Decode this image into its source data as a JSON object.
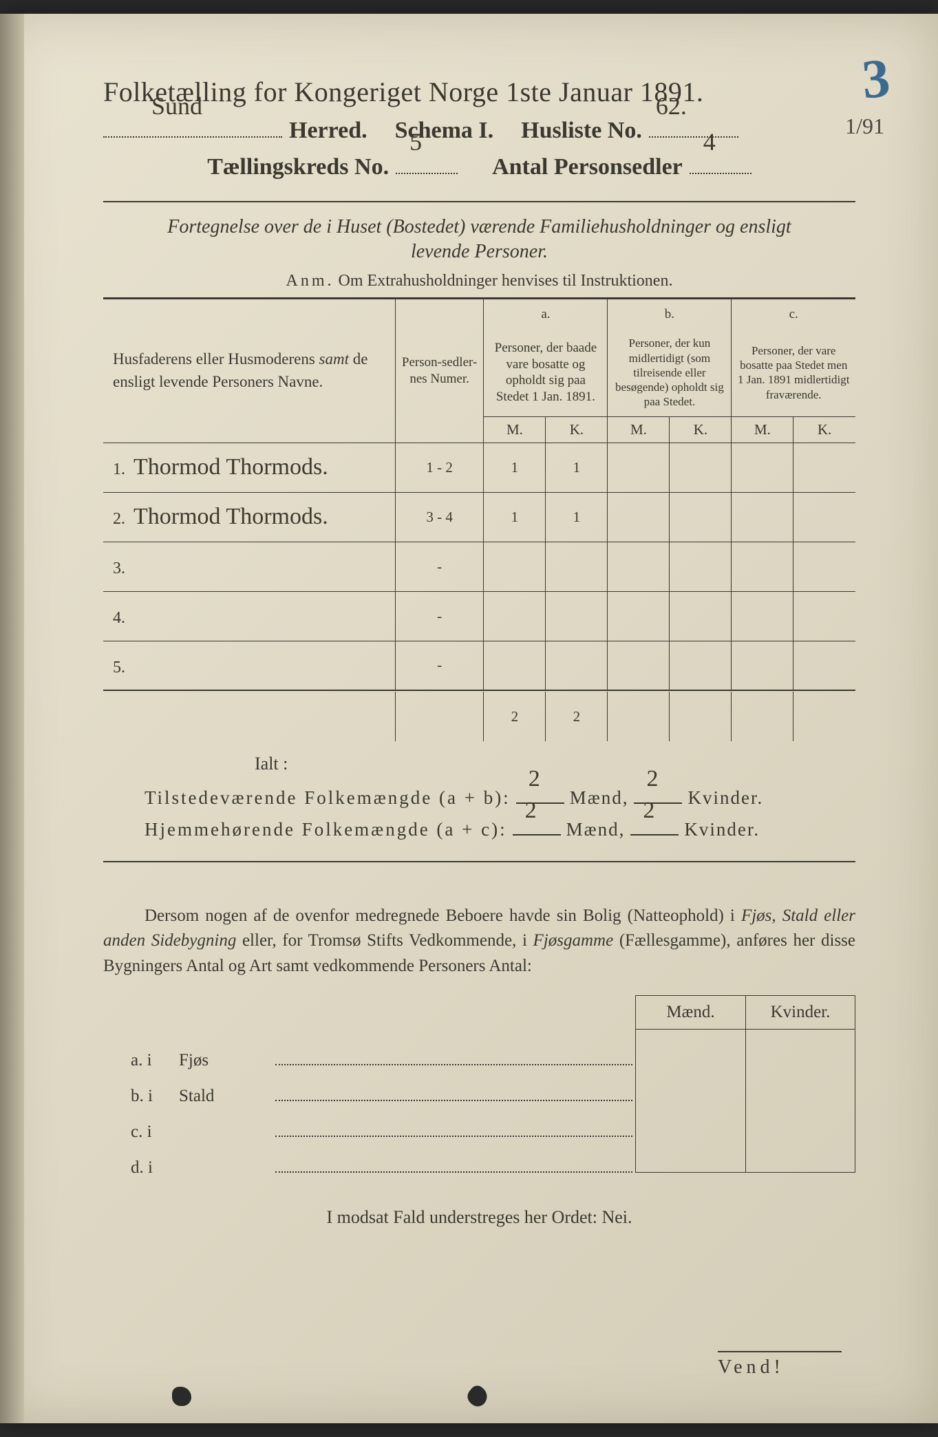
{
  "colors": {
    "paper": "#ded8c4",
    "ink": "#3a3830",
    "handwriting": "#3d3a2e",
    "blue_crayon": "#3a6a8f"
  },
  "header": {
    "title": "Folketælling for Kongeriget Norge 1ste Januar 1891.",
    "herred_label": "Herred.",
    "herred_value": "Sund",
    "schema_label": "Schema I.",
    "husliste_label": "Husliste No.",
    "husliste_value": "62.",
    "kreds_label": "Tællingskreds No.",
    "kreds_value": "5",
    "antal_label": "Antal Personsedler",
    "antal_value": "4",
    "blue_number": "3",
    "blue_sub": "1/91"
  },
  "subtitle": {
    "line1": "Fortegnelse over de i Huset (Bostedet) værende Familiehusholdninger og ensligt",
    "line2": "levende Personer.",
    "anm_label": "Anm.",
    "anm_text": "Om Extrahusholdninger henvises til Instruktionen."
  },
  "table": {
    "col_name": "Husfaderens eller Husmoderens samt de ensligt levende Personers Navne.",
    "col_numer": "Person-sedler-nes Numer.",
    "col_a_label": "a.",
    "col_a": "Personer, der baade vare bosatte og opholdt sig paa Stedet 1 Jan. 1891.",
    "col_b_label": "b.",
    "col_b": "Personer, der kun midlertidigt (som tilreisende eller besøgende) opholdt sig paa Stedet.",
    "col_c_label": "c.",
    "col_c": "Personer, der vare bosatte paa Stedet men 1 Jan. 1891 midlertidigt fraværende.",
    "m": "M.",
    "k": "K.",
    "rows": [
      {
        "n": "1.",
        "name": "Thormod Thormods.",
        "numer": "1 - 2",
        "am": "1",
        "ak": "1",
        "bm": "",
        "bk": "",
        "cm": "",
        "ck": ""
      },
      {
        "n": "2.",
        "name": "Thormod Thormods.",
        "numer": "3 - 4",
        "am": "1",
        "ak": "1",
        "bm": "",
        "bk": "",
        "cm": "",
        "ck": ""
      },
      {
        "n": "3.",
        "name": "",
        "numer": "-",
        "am": "",
        "ak": "",
        "bm": "",
        "bk": "",
        "cm": "",
        "ck": ""
      },
      {
        "n": "4.",
        "name": "",
        "numer": "-",
        "am": "",
        "ak": "",
        "bm": "",
        "bk": "",
        "cm": "",
        "ck": ""
      },
      {
        "n": "5.",
        "name": "",
        "numer": "-",
        "am": "",
        "ak": "",
        "bm": "",
        "bk": "",
        "cm": "",
        "ck": ""
      }
    ],
    "totals": {
      "am": "2",
      "ak": "2"
    },
    "ialt": "Ialt :"
  },
  "summary": {
    "line1_label": "Tilstedeværende Folkemængde (a + b):",
    "line2_label": "Hjemmehørende Folkemængde (a + c):",
    "maend": "Mænd,",
    "kvinder": "Kvinder.",
    "m1": "2",
    "k1": "2",
    "m2": "2",
    "k2": "2"
  },
  "paragraph": {
    "text_a": "Dersom nogen af de ovenfor medregnede Beboere havde sin Bolig (Natteophold) i ",
    "ital1": "Fjøs, Stald eller anden Sidebygning",
    "text_b": " eller, for Tromsø Stifts Vedkommende, i ",
    "ital2": "Fjøsgamme",
    "text_c": " (Fællesgamme), anføres her disse Bygningers Antal og Art samt vedkommende Personers Antal:"
  },
  "bottom": {
    "maend": "Mænd.",
    "kvinder": "Kvinder.",
    "rows": [
      {
        "lab": "a.  i",
        "txt": "Fjøs"
      },
      {
        "lab": "b.  i",
        "txt": "Stald"
      },
      {
        "lab": "c.  i",
        "txt": ""
      },
      {
        "lab": "d.  i",
        "txt": ""
      }
    ]
  },
  "nei_line": "I modsat Fald understreges her Ordet: Nei.",
  "vend": "Vend!"
}
